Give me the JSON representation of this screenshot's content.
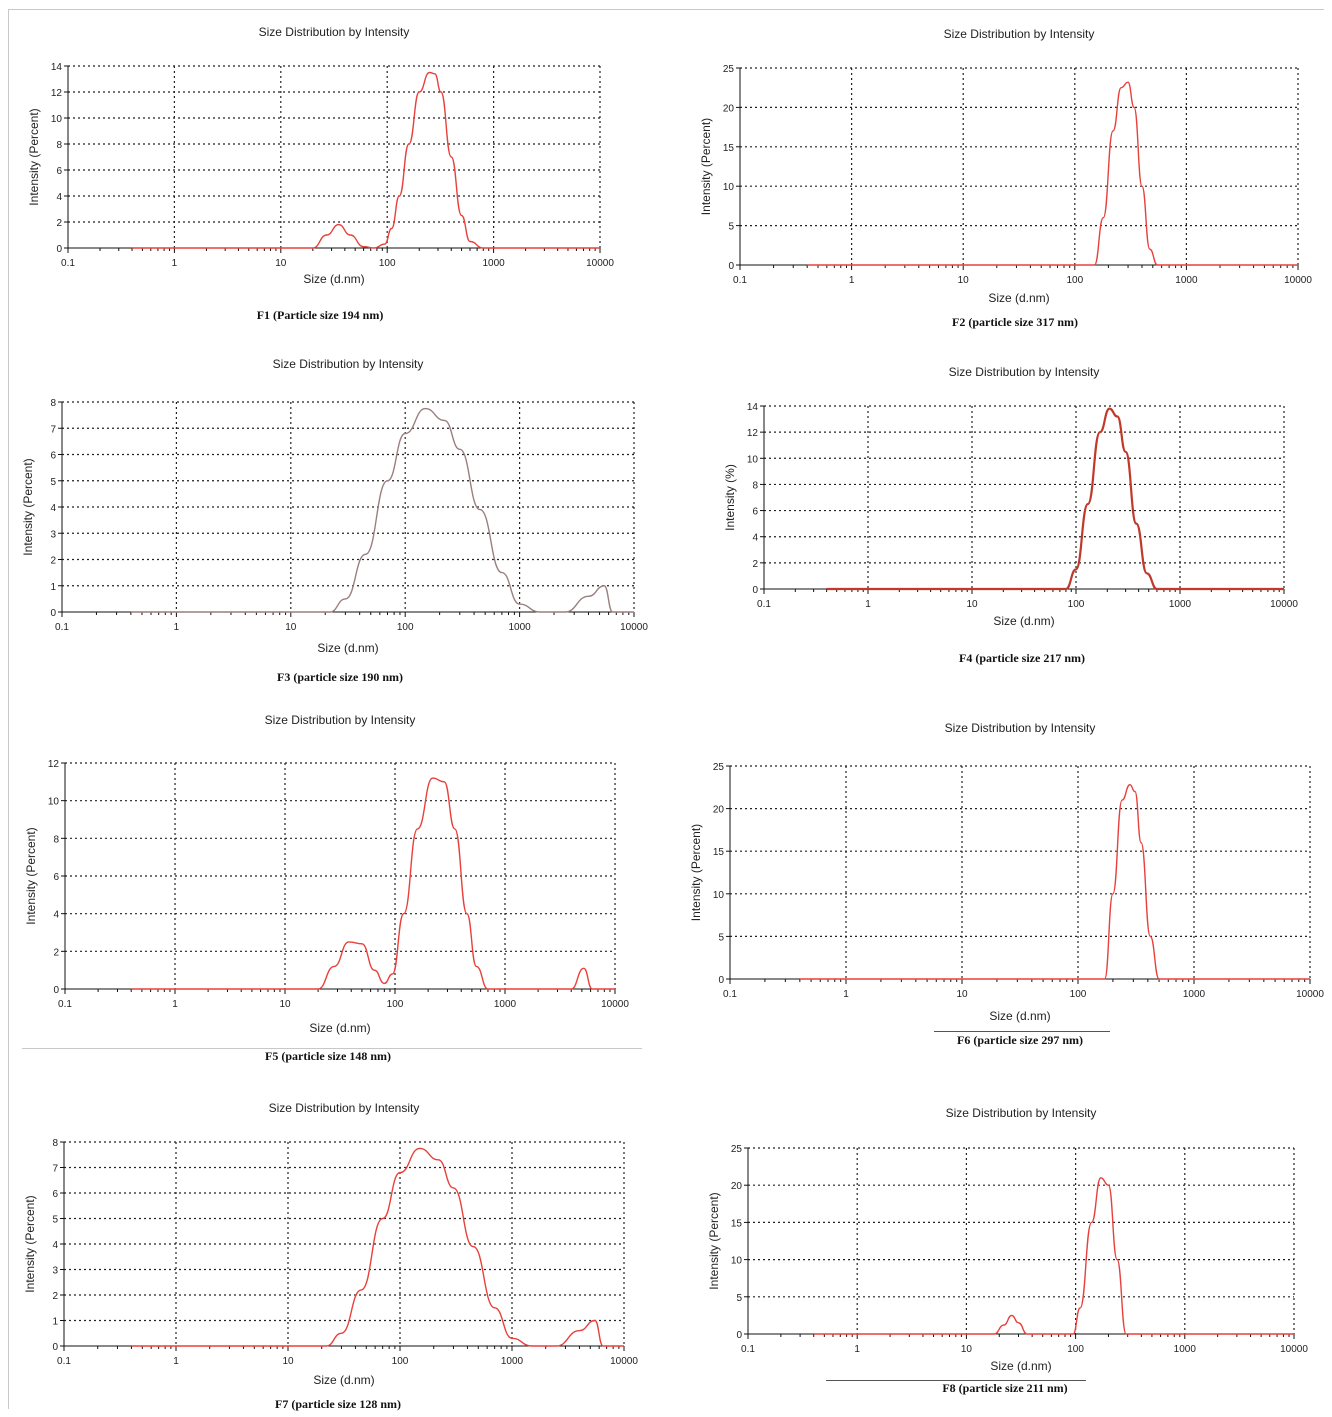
{
  "figure": {
    "panels": [
      {
        "caption": "F1 (Particle size 194 nm)"
      },
      {
        "caption": "F2 (particle size 317 nm)"
      },
      {
        "caption": "F3 (particle size 190 nm)"
      },
      {
        "caption": "F4 (particle size 217 nm)"
      },
      {
        "caption": "F5 (particle size 148 nm)"
      },
      {
        "caption": "F6 (particle size 297 nm)"
      },
      {
        "caption": "F7 (particle size 128 nm)"
      },
      {
        "caption": "F8 (particle size 211 nm)"
      }
    ]
  },
  "chart_data": [
    {
      "type": "line",
      "title": "Size Distribution by Intensity",
      "xlabel": "Size (d.nm)",
      "ylabel": "Intensity (Percent)",
      "xscale": "log",
      "xlim": [
        0.1,
        10000
      ],
      "ylim": [
        0,
        14
      ],
      "xticks": [
        "0.1",
        "1",
        "10",
        "100",
        "1000",
        "10000"
      ],
      "yticks": [
        "0",
        "2",
        "4",
        "6",
        "8",
        "10",
        "12",
        "14"
      ],
      "grid": true,
      "line_color": "#e8413c",
      "series": [
        {
          "x": [
            0.4,
            20,
            27,
            35,
            45,
            60,
            75,
            95,
            110,
            130,
            160,
            200,
            250,
            280,
            320,
            400,
            500,
            600,
            800,
            10000
          ],
          "y": [
            0,
            0,
            1.0,
            1.8,
            1.0,
            0.1,
            0,
            0.3,
            1.5,
            4.0,
            8.0,
            12.0,
            13.5,
            13.4,
            12.0,
            7.0,
            2.5,
            0.5,
            0,
            0
          ]
        }
      ]
    },
    {
      "type": "line",
      "title": "Size Distribution by Intensity",
      "xlabel": "Size (d.nm)",
      "ylabel": "Intensity (Percent)",
      "xscale": "log",
      "xlim": [
        0.1,
        10000
      ],
      "ylim": [
        0,
        25
      ],
      "xticks": [
        "0.1",
        "1",
        "10",
        "100",
        "1000",
        "10000"
      ],
      "yticks": [
        "0",
        "5",
        "10",
        "15",
        "20",
        "25"
      ],
      "grid": true,
      "line_color": "#e8413c",
      "series": [
        {
          "x": [
            0.4,
            150,
            180,
            220,
            260,
            300,
            340,
            400,
            470,
            550,
            10000
          ],
          "y": [
            0,
            0,
            6,
            17,
            22.5,
            23.2,
            20,
            10,
            2,
            0,
            0
          ]
        }
      ]
    },
    {
      "type": "line",
      "title": "Size Distribution by Intensity",
      "xlabel": "Size (d.nm)",
      "ylabel": "Intensity (Percent)",
      "xscale": "log",
      "xlim": [
        0.1,
        10000
      ],
      "ylim": [
        0,
        8
      ],
      "xticks": [
        "0.1",
        "1",
        "10",
        "100",
        "1000",
        "10000"
      ],
      "yticks": [
        "0",
        "1",
        "2",
        "3",
        "4",
        "5",
        "6",
        "7",
        "8"
      ],
      "grid": true,
      "line_color": "#9a7f7f",
      "series": [
        {
          "x": [
            0.4,
            22,
            30,
            45,
            70,
            100,
            150,
            220,
            300,
            450,
            700,
            1000,
            1500,
            2500,
            4000,
            5500,
            6500,
            10000
          ],
          "y": [
            0,
            0,
            0.5,
            2.2,
            5.0,
            6.8,
            7.75,
            7.3,
            6.2,
            3.9,
            1.5,
            0.3,
            0,
            0,
            0.6,
            1.0,
            0,
            0
          ]
        }
      ]
    },
    {
      "type": "line",
      "title": "Size Distribution by Intensity",
      "xlabel": "Size (d.nm)",
      "ylabel": "Intensity (%)",
      "xscale": "log",
      "xlim": [
        0.1,
        10000
      ],
      "ylim": [
        0,
        14
      ],
      "xticks": [
        "0.1",
        "1",
        "10",
        "100",
        "1000",
        "10000"
      ],
      "yticks": [
        "0",
        "2",
        "4",
        "6",
        "8",
        "10",
        "12",
        "14"
      ],
      "grid": true,
      "line_color": "#c0392b",
      "series": [
        {
          "x": [
            0.4,
            80,
            100,
            130,
            170,
            210,
            250,
            300,
            380,
            480,
            600,
            10000
          ],
          "y": [
            0,
            0,
            1.5,
            6.5,
            12,
            13.8,
            13.2,
            10.5,
            5,
            1.2,
            0,
            0
          ]
        }
      ]
    },
    {
      "type": "line",
      "title": "Size Distribution by Intensity",
      "xlabel": "Size (d.nm)",
      "ylabel": "Intensity (Percent)",
      "xscale": "log",
      "xlim": [
        0.1,
        10000
      ],
      "ylim": [
        0,
        12
      ],
      "xticks": [
        "0.1",
        "1",
        "10",
        "100",
        "1000",
        "10000"
      ],
      "yticks": [
        "0",
        "2",
        "4",
        "6",
        "8",
        "10",
        "12"
      ],
      "grid": true,
      "line_color": "#e8413c",
      "series": [
        {
          "x": [
            0.4,
            20,
            28,
            38,
            50,
            65,
            80,
            95,
            120,
            160,
            220,
            280,
            350,
            450,
            550,
            700,
            4000,
            5200,
            6200,
            10000
          ],
          "y": [
            0,
            0,
            1.2,
            2.5,
            2.4,
            1.0,
            0.3,
            0.8,
            4.0,
            8.5,
            11.2,
            11.0,
            8.5,
            4.0,
            1.2,
            0,
            0,
            1.1,
            0,
            0
          ]
        }
      ]
    },
    {
      "type": "line",
      "title": "Size Distribution by Intensity",
      "xlabel": "Size (d.nm)",
      "ylabel": "Intensity (Percent)",
      "xscale": "log",
      "xlim": [
        0.1,
        10000
      ],
      "ylim": [
        0,
        25
      ],
      "xticks": [
        "0.1",
        "1",
        "10",
        "100",
        "1000",
        "10000"
      ],
      "yticks": [
        "0",
        "5",
        "10",
        "15",
        "20",
        "25"
      ],
      "grid": true,
      "line_color": "#e8413c",
      "series": [
        {
          "x": [
            0.4,
            170,
            200,
            240,
            280,
            310,
            350,
            420,
            500,
            10000
          ],
          "y": [
            0,
            0,
            10,
            21,
            22.8,
            22,
            16,
            5,
            0,
            0
          ]
        }
      ]
    },
    {
      "type": "line",
      "title": "Size Distribution by Intensity",
      "xlabel": "Size (d.nm)",
      "ylabel": "Intensity (Percent)",
      "xscale": "log",
      "xlim": [
        0.1,
        10000
      ],
      "ylim": [
        0,
        8
      ],
      "xticks": [
        "0.1",
        "1",
        "10",
        "100",
        "1000",
        "10000"
      ],
      "yticks": [
        "0",
        "1",
        "2",
        "3",
        "4",
        "5",
        "6",
        "7",
        "8"
      ],
      "grid": true,
      "line_color": "#e8413c",
      "series": [
        {
          "x": [
            0.4,
            22,
            30,
            45,
            70,
            100,
            150,
            220,
            300,
            450,
            700,
            1000,
            1500,
            2500,
            4000,
            5500,
            6500,
            10000
          ],
          "y": [
            0,
            0,
            0.5,
            2.2,
            5.0,
            6.8,
            7.75,
            7.3,
            6.2,
            3.9,
            1.5,
            0.3,
            0,
            0,
            0.6,
            1.0,
            0,
            0
          ]
        }
      ]
    },
    {
      "type": "line",
      "title": "Size Distribution by Intensity",
      "xlabel": "Size (d.nm)",
      "ylabel": "Intensity (Percent)",
      "xscale": "log",
      "xlim": [
        0.1,
        10000
      ],
      "ylim": [
        0,
        25
      ],
      "xticks": [
        "0.1",
        "1",
        "10",
        "100",
        "1000",
        "10000"
      ],
      "yticks": [
        "0",
        "5",
        "10",
        "15",
        "20",
        "25"
      ],
      "grid": true,
      "line_color": "#e8413c",
      "series": [
        {
          "x": [
            0.4,
            18,
            22,
            26,
            30,
            36,
            95,
            110,
            140,
            170,
            200,
            240,
            290,
            10000
          ],
          "y": [
            0,
            0,
            1.2,
            2.5,
            1.5,
            0,
            0,
            3.5,
            15,
            21,
            20,
            10,
            0,
            0
          ]
        }
      ]
    }
  ]
}
